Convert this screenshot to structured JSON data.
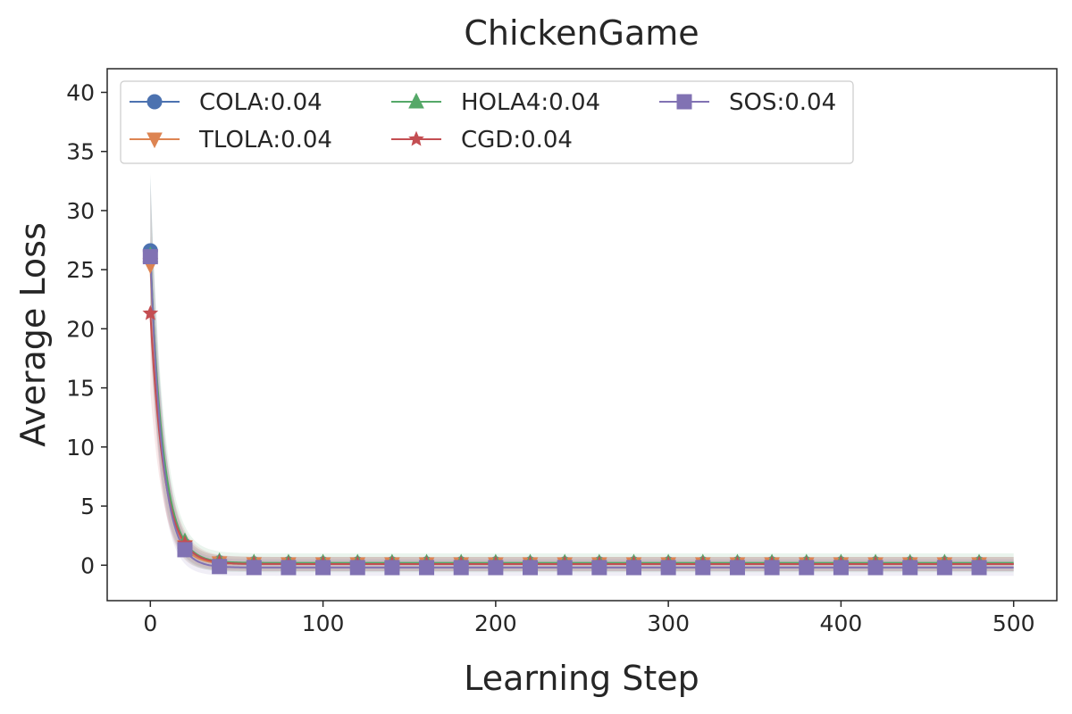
{
  "chart_data": {
    "type": "line",
    "title": "ChickenGame",
    "xlabel": "Learning Step",
    "ylabel": "Average Loss",
    "xlim": [
      -25,
      525
    ],
    "ylim": [
      -3,
      42
    ],
    "xticks": [
      0,
      100,
      200,
      300,
      400,
      500
    ],
    "yticks": [
      0,
      5,
      10,
      15,
      20,
      25,
      30,
      35,
      40
    ],
    "grid": false,
    "legend_position": "top-left",
    "legend_columns": 3,
    "marker_x": [
      0,
      20,
      40,
      60,
      80,
      100,
      120,
      140,
      160,
      180,
      200,
      220,
      240,
      260,
      280,
      300,
      320,
      340,
      360,
      380,
      400,
      420,
      440,
      460,
      480
    ],
    "series": [
      {
        "name": "COLA:0.04",
        "color": "#4c72b0",
        "marker": "circle",
        "start": 26.6,
        "end": 0.1,
        "tau": 7.0,
        "band": 0.6
      },
      {
        "name": "TLOLA:0.04",
        "color": "#dd8452",
        "marker": "triangle-down",
        "start": 25.4,
        "end": 0.1,
        "tau": 7.0,
        "band": 0.6
      },
      {
        "name": "HOLA4:0.04",
        "color": "#55a868",
        "marker": "triangle-up",
        "start": 26.2,
        "end": 0.2,
        "tau": 7.5,
        "band": 0.8
      },
      {
        "name": "CGD:0.04",
        "color": "#c44e52",
        "marker": "star",
        "start": 21.3,
        "end": 0.1,
        "tau": 8.0,
        "band": 0.6
      },
      {
        "name": "SOS:0.04",
        "color": "#8172b3",
        "marker": "square",
        "start": 26.1,
        "end": -0.2,
        "tau": 7.0,
        "band": 0.7
      }
    ]
  }
}
